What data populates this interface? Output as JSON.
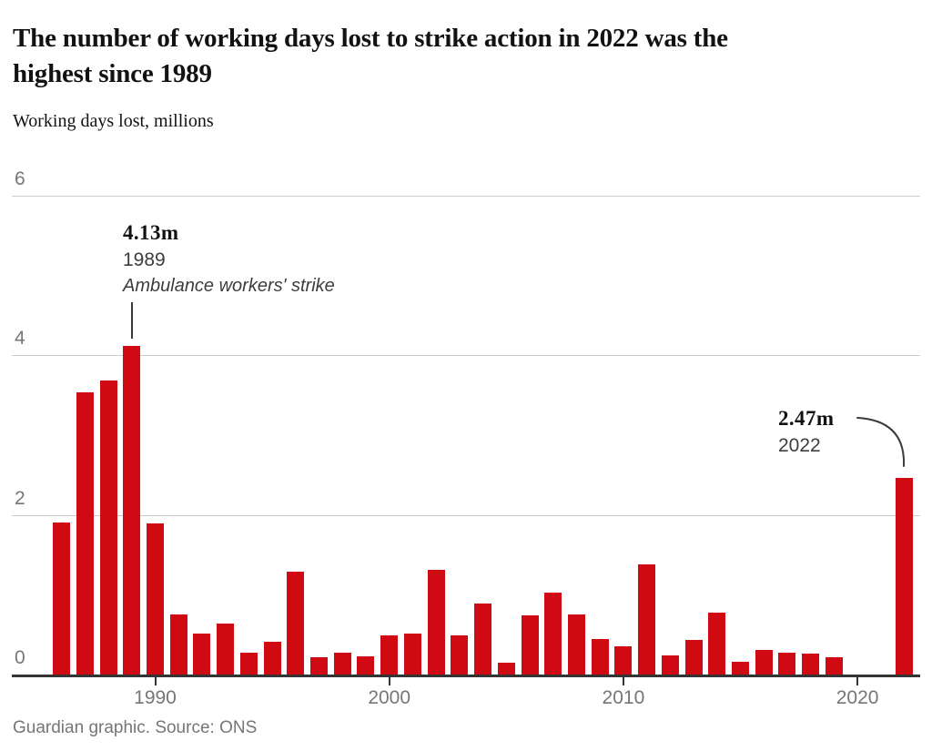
{
  "header": {
    "title_lines": [
      "The number of working days lost to strike action in 2022 was the",
      "highest since 1989"
    ],
    "subtitle": "Working days lost, millions"
  },
  "chart_data": {
    "type": "bar",
    "title": "The number of working days lost to strike action in 2022 was the highest since 1989",
    "ylabel": "Working days lost, millions",
    "xlabel": "",
    "ylim": [
      0,
      6
    ],
    "yticks": [
      0,
      2,
      4,
      6
    ],
    "xticks": [
      1990,
      2000,
      2010,
      2020
    ],
    "grid": "horizontal-lines",
    "legend": "none",
    "bar_color": "#cf0a12",
    "years": [
      1986,
      1987,
      1988,
      1989,
      1990,
      1991,
      1992,
      1993,
      1994,
      1995,
      1996,
      1997,
      1998,
      1999,
      2000,
      2001,
      2002,
      2003,
      2004,
      2005,
      2006,
      2007,
      2008,
      2009,
      2010,
      2011,
      2012,
      2013,
      2014,
      2015,
      2016,
      2017,
      2018,
      2019,
      2020,
      2021,
      2022
    ],
    "values": [
      1.92,
      3.55,
      3.7,
      4.13,
      1.9,
      0.76,
      0.53,
      0.65,
      0.28,
      0.42,
      1.3,
      0.23,
      0.28,
      0.24,
      0.5,
      0.53,
      1.32,
      0.5,
      0.9,
      0.16,
      0.75,
      1.04,
      0.76,
      0.46,
      0.37,
      1.39,
      0.25,
      0.44,
      0.79,
      0.17,
      0.32,
      0.28,
      0.27,
      0.23,
      0,
      0,
      2.47
    ],
    "annotations": [
      {
        "value_label": "4.13m",
        "year_label": "1989",
        "note": "Ambulance workers' strike"
      },
      {
        "value_label": "2.47m",
        "year_label": "2022",
        "note": ""
      }
    ]
  },
  "footer": {
    "credit": "Guardian graphic. Source: ONS"
  }
}
